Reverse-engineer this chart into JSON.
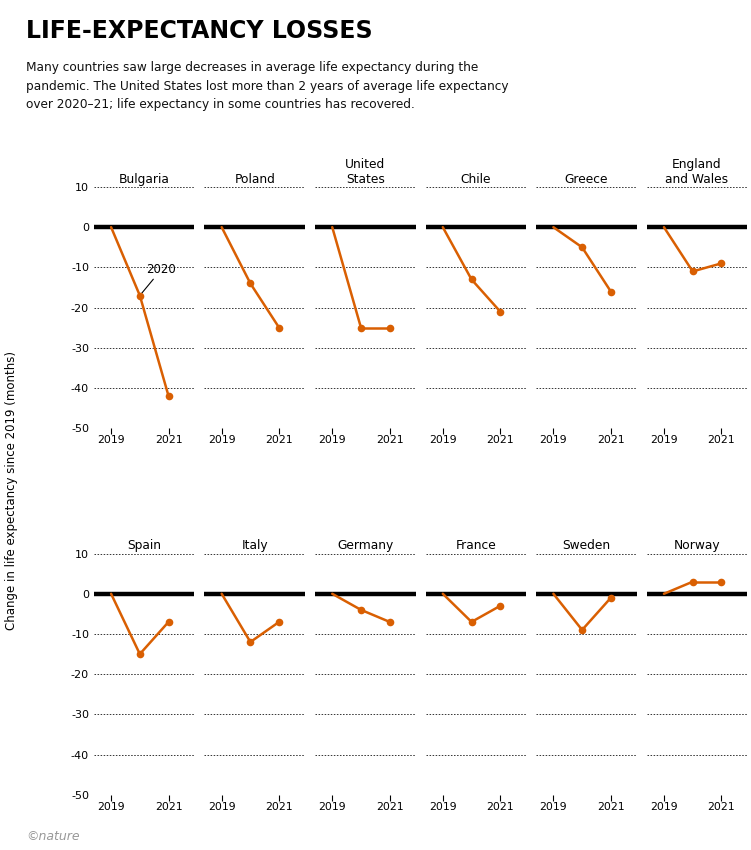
{
  "title": "LIFE-EXPECTANCY LOSSES",
  "subtitle": "Many countries saw large decreases in average life expectancy during the\npandemic. The United States lost more than 2 years of average life expectancy\nover 2020–21; life expectancy in some countries has recovered.",
  "row1_countries": [
    "Bulgaria",
    "Poland",
    "United\nStates",
    "Chile",
    "Greece",
    "England\nand Wales"
  ],
  "row2_countries": [
    "Spain",
    "Italy",
    "Germany",
    "France",
    "Sweden",
    "Norway"
  ],
  "row1_data": [
    [
      0,
      -17,
      -42
    ],
    [
      0,
      -14,
      -25
    ],
    [
      0,
      -25,
      -25
    ],
    [
      0,
      -13,
      -21
    ],
    [
      0,
      -5,
      -16
    ],
    [
      0,
      -11,
      -9
    ]
  ],
  "row2_data": [
    [
      0,
      -15,
      -7
    ],
    [
      0,
      -12,
      -7
    ],
    [
      0,
      -4,
      -7
    ],
    [
      0,
      -7,
      -3
    ],
    [
      0,
      -9,
      -1
    ],
    [
      0,
      3,
      3
    ]
  ],
  "years": [
    2019,
    2020,
    2021
  ],
  "ylim": [
    -50,
    10
  ],
  "yticks": [
    10,
    0,
    -10,
    -20,
    -30,
    -40,
    -50
  ],
  "line_color": "#d95f02",
  "zero_line_color": "black",
  "background_color": "white",
  "copyright_text": "©nature",
  "ylabel": "Change in life expectancy since 2019 (months)"
}
